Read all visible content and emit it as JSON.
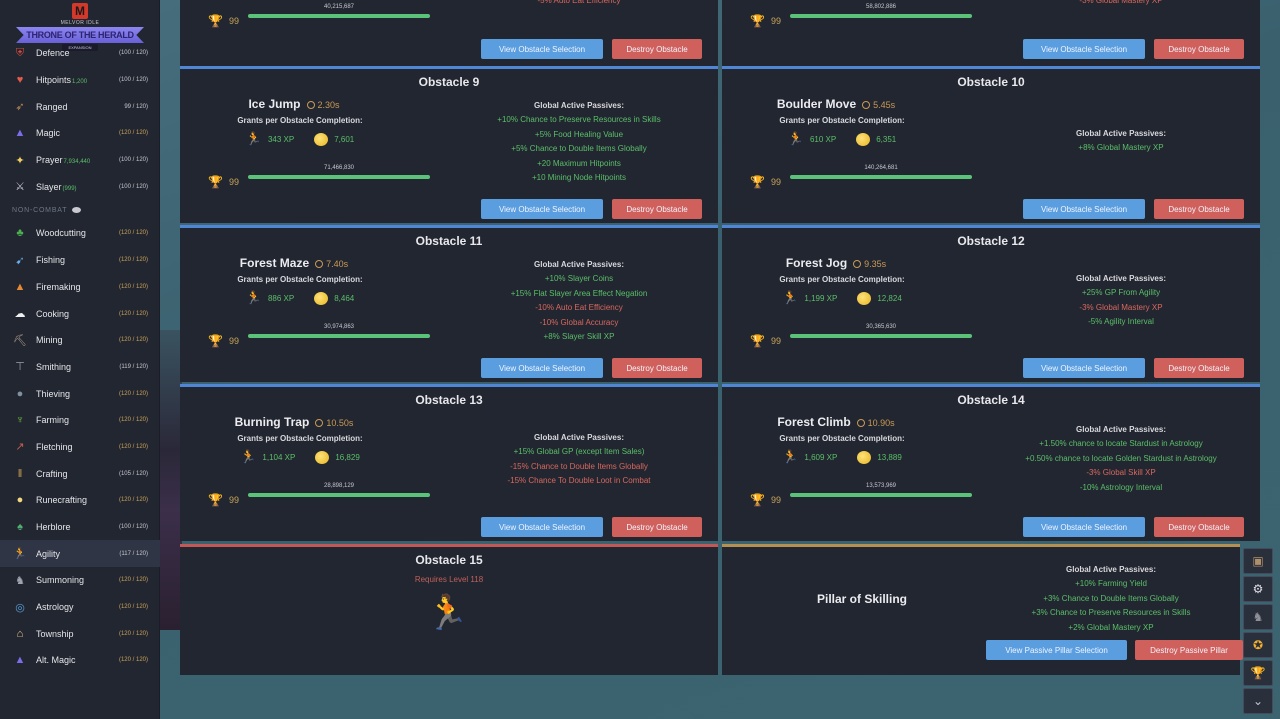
{
  "app": {
    "logo_sub": "MELVOR IDLE",
    "logo_banner": "THRONE OF THE HERALD",
    "logo_tag": "EXPANSION"
  },
  "sidebar": {
    "combat": [
      {
        "name": "Defence",
        "extra": "",
        "level": "(100 / 120)",
        "gold": false,
        "icon": "shield-icon",
        "glyph": "⛨",
        "color": "#d44b3c"
      },
      {
        "name": "Hitpoints",
        "extra": "1,200",
        "level": "(100 / 120)",
        "gold": false,
        "icon": "heart-icon",
        "glyph": "♥",
        "color": "#e55b4a"
      },
      {
        "name": "Ranged",
        "extra": "",
        "level": "99 / 120)",
        "gold": false,
        "icon": "bow-icon",
        "glyph": "➶",
        "color": "#b88a58"
      },
      {
        "name": "Magic",
        "extra": "",
        "level": "(120 / 120)",
        "gold": true,
        "icon": "wizard-hat-icon",
        "glyph": "▲",
        "color": "#7a6ee8"
      },
      {
        "name": "Prayer",
        "extra": "7,934,440",
        "level": "(100 / 120)",
        "gold": false,
        "icon": "prayer-icon",
        "glyph": "✦",
        "color": "#f0d060"
      },
      {
        "name": "Slayer",
        "extra": "(999)",
        "level": "(100 / 120)",
        "gold": false,
        "icon": "slayer-icon",
        "glyph": "⚔",
        "color": "#c8c8d0"
      }
    ],
    "noncombat_label": "NON-COMBAT",
    "noncombat": [
      {
        "name": "Woodcutting",
        "level": "(120 / 120)",
        "gold": true,
        "icon": "tree-icon",
        "glyph": "♣",
        "color": "#4caf50"
      },
      {
        "name": "Fishing",
        "level": "(120 / 120)",
        "gold": true,
        "icon": "fish-icon",
        "glyph": "➹",
        "color": "#6ab0f0"
      },
      {
        "name": "Firemaking",
        "level": "(120 / 120)",
        "gold": true,
        "icon": "fire-icon",
        "glyph": "▲",
        "color": "#e88a30"
      },
      {
        "name": "Cooking",
        "level": "(120 / 120)",
        "gold": true,
        "icon": "chef-hat-icon",
        "glyph": "☁",
        "color": "#f0f0f0"
      },
      {
        "name": "Mining",
        "level": "(120 / 120)",
        "gold": true,
        "icon": "pickaxe-icon",
        "glyph": "⛏",
        "color": "#b0a090"
      },
      {
        "name": "Smithing",
        "level": "(119 / 120)",
        "gold": false,
        "icon": "anvil-icon",
        "glyph": "⊤",
        "color": "#a0a0a8"
      },
      {
        "name": "Thieving",
        "level": "(120 / 120)",
        "gold": true,
        "icon": "thief-icon",
        "glyph": "●",
        "color": "#8090a0"
      },
      {
        "name": "Farming",
        "level": "(120 / 120)",
        "gold": true,
        "icon": "sprout-icon",
        "glyph": "♆",
        "color": "#6cc040"
      },
      {
        "name": "Fletching",
        "level": "(120 / 120)",
        "gold": true,
        "icon": "arrow-icon",
        "glyph": "↗",
        "color": "#c06050"
      },
      {
        "name": "Crafting",
        "level": "(105 / 120)",
        "gold": false,
        "icon": "crafting-icon",
        "glyph": "‖",
        "color": "#c8a050"
      },
      {
        "name": "Runecrafting",
        "level": "(120 / 120)",
        "gold": true,
        "icon": "rune-icon",
        "glyph": "●",
        "color": "#f0d880"
      },
      {
        "name": "Herblore",
        "level": "(100 / 120)",
        "gold": false,
        "icon": "herb-icon",
        "glyph": "♠",
        "color": "#50b070"
      },
      {
        "name": "Agility",
        "level": "(117 / 120)",
        "gold": false,
        "icon": "runner-icon",
        "glyph": "🏃",
        "color": "#3d6ae0",
        "active": true
      },
      {
        "name": "Summoning",
        "level": "(120 / 120)",
        "gold": true,
        "icon": "wolf-icon",
        "glyph": "♞",
        "color": "#a0a4b0"
      },
      {
        "name": "Astrology",
        "level": "(120 / 120)",
        "gold": true,
        "icon": "astrolabe-icon",
        "glyph": "◎",
        "color": "#5a9ed8"
      },
      {
        "name": "Township",
        "level": "(120 / 120)",
        "gold": true,
        "icon": "township-icon",
        "glyph": "⌂",
        "color": "#e8c890"
      },
      {
        "name": "Alt. Magic",
        "level": "(120 / 120)",
        "gold": true,
        "icon": "alt-magic-icon",
        "glyph": "▲",
        "color": "#7a6ee8"
      }
    ]
  },
  "labels": {
    "grants": "Grants per Obstacle Completion:",
    "passives_title": "Global Active Passives:",
    "view_obstacle": "View Obstacle Selection",
    "destroy_obstacle": "Destroy Obstacle",
    "view_pillar": "View Passive Pillar Selection",
    "destroy_pillar": "Destroy Passive Pillar",
    "xp_suffix": "XP"
  },
  "top_partial": [
    {
      "mastery": "99",
      "progress": "40,215,687",
      "passive_last": "-5% Auto Eat Efficiency"
    },
    {
      "mastery": "99",
      "progress": "58,802,886",
      "passive_last": "-3% Global Mastery XP"
    }
  ],
  "obstacles": [
    {
      "title": "Obstacle 9",
      "name": "Ice Jump",
      "time": "2.30s",
      "xp": "343",
      "gp": "7,601",
      "mastery": "99",
      "progress": "71,466,830",
      "passives": [
        {
          "text": "+10% Chance to Preserve Resources in Skills",
          "type": "pos"
        },
        {
          "text": "+5% Food Healing Value",
          "type": "pos"
        },
        {
          "text": "+5% Chance to Double Items Globally",
          "type": "pos"
        },
        {
          "text": "+20 Maximum Hitpoints",
          "type": "pos"
        },
        {
          "text": "+10 Mining Node Hitpoints",
          "type": "pos"
        }
      ]
    },
    {
      "title": "Obstacle 10",
      "name": "Boulder Move",
      "time": "5.45s",
      "xp": "610",
      "gp": "6,351",
      "mastery": "99",
      "progress": "140,264,681",
      "passives": [
        {
          "text": "+8% Global Mastery XP",
          "type": "pos"
        }
      ]
    },
    {
      "title": "Obstacle 11",
      "name": "Forest Maze",
      "time": "7.40s",
      "xp": "886",
      "gp": "8,464",
      "mastery": "99",
      "progress": "30,974,863",
      "passives": [
        {
          "text": "+10% Slayer Coins",
          "type": "pos"
        },
        {
          "text": "+15% Flat Slayer Area Effect Negation",
          "type": "pos"
        },
        {
          "text": "-10% Auto Eat Efficiency",
          "type": "neg"
        },
        {
          "text": "-10% Global Accuracy",
          "type": "neg"
        },
        {
          "text": "+8% Slayer Skill XP",
          "type": "pos"
        }
      ]
    },
    {
      "title": "Obstacle 12",
      "name": "Forest Jog",
      "time": "9.35s",
      "xp": "1,199",
      "gp": "12,824",
      "mastery": "99",
      "progress": "30,365,630",
      "passives": [
        {
          "text": "+25% GP From Agility",
          "type": "pos"
        },
        {
          "text": "-3% Global Mastery XP",
          "type": "neg"
        },
        {
          "text": "-5% Agility Interval",
          "type": "pos"
        }
      ]
    },
    {
      "title": "Obstacle 13",
      "name": "Burning Trap",
      "time": "10.50s",
      "xp": "1,104",
      "gp": "16,829",
      "mastery": "99",
      "progress": "28,898,129",
      "passives": [
        {
          "text": "+15% Global GP (except Item Sales)",
          "type": "pos"
        },
        {
          "text": "-15% Chance to Double Items Globally",
          "type": "neg"
        },
        {
          "text": "-15% Chance To Double Loot in Combat",
          "type": "neg"
        }
      ]
    },
    {
      "title": "Obstacle 14",
      "name": "Forest Climb",
      "time": "10.90s",
      "xp": "1,609",
      "gp": "13,889",
      "mastery": "99",
      "progress": "13,573,969",
      "passives": [
        {
          "text": "+1.50% chance to locate Stardust in Astrology",
          "type": "pos"
        },
        {
          "text": "+0.50% chance to locate Golden Stardust in Astrology",
          "type": "pos"
        },
        {
          "text": "-3% Global Skill XP",
          "type": "neg"
        },
        {
          "text": "-10% Astrology Interval",
          "type": "pos"
        }
      ]
    }
  ],
  "locked": {
    "title": "Obstacle 15",
    "requirement": "Requires Level 118"
  },
  "pillar": {
    "name": "Pillar of Skilling",
    "passives": [
      {
        "text": "+10% Farming Yield",
        "type": "pos"
      },
      {
        "text": "+3% Chance to Double Items Globally",
        "type": "pos"
      },
      {
        "text": "+3% Chance to Preserve Resources in Skills",
        "type": "pos"
      },
      {
        "text": "+2% Global Mastery XP",
        "type": "pos"
      }
    ]
  },
  "tools": [
    {
      "name": "bank-icon",
      "glyph": "▣",
      "color": "#b0906a"
    },
    {
      "name": "settings-gear-icon",
      "glyph": "⚙",
      "color": "#e0e0e8"
    },
    {
      "name": "summoning-icon",
      "glyph": "♞",
      "color": "#909098"
    },
    {
      "name": "achievement-medal-icon",
      "glyph": "✪",
      "color": "#f0b030"
    },
    {
      "name": "trophy-icon",
      "glyph": "🏆",
      "color": "#f0b030"
    },
    {
      "name": "chevron-down-icon",
      "glyph": "⌄",
      "color": "#c8c8d0"
    }
  ]
}
